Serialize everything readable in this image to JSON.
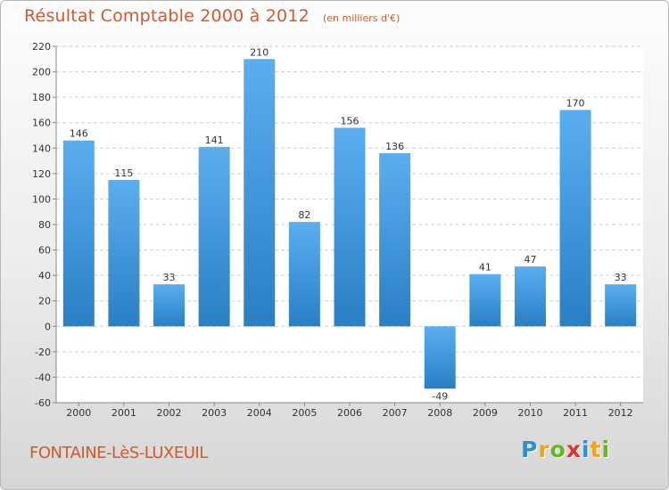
{
  "chart_data": {
    "type": "bar",
    "title": "Résultat Comptable 2000 à 2012",
    "unit_note": "(en milliers d'€)",
    "categories": [
      "2000",
      "2001",
      "2002",
      "2003",
      "2004",
      "2005",
      "2006",
      "2007",
      "2008",
      "2009",
      "2010",
      "2011",
      "2012"
    ],
    "values": [
      146,
      115,
      33,
      141,
      210,
      82,
      156,
      136,
      -49,
      41,
      47,
      170,
      33
    ],
    "ylim": [
      -60,
      220
    ],
    "yticks": [
      220,
      200,
      180,
      160,
      140,
      120,
      100,
      80,
      60,
      40,
      20,
      0,
      -20,
      -40,
      -60
    ],
    "grid": true,
    "xlabel": "",
    "ylabel": ""
  },
  "commune_name": "FONTAINE-LèS-LUXEUIL",
  "logo": {
    "letters": [
      "P",
      "r",
      "o",
      "x",
      "i",
      "t",
      "i"
    ],
    "colors": [
      "#2f8fd3",
      "#f2a21c",
      "#6ab42a",
      "#e0342c",
      "#2f8fd3",
      "#f2a21c",
      "#6ab42a"
    ]
  },
  "colors": {
    "bar_top": "#5aaef0",
    "bar_bottom": "#2a7fc4",
    "accent": "#d15a2c"
  }
}
